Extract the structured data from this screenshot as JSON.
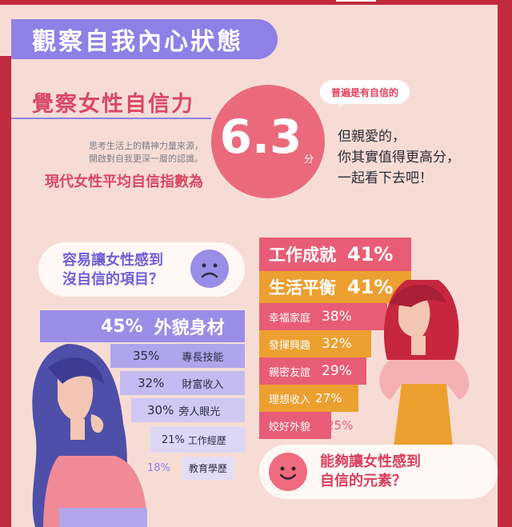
{
  "header": {
    "title": "觀察自我內心狀態"
  },
  "intro": {
    "subtitle": "覺察女性自信力",
    "desc_line1": "思考生活上的精神力量來源，",
    "desc_line2": "開啟對自我更深一層的認識。",
    "index_label": "現代女性平均自信指數為"
  },
  "score": {
    "value": "6.3",
    "unit": "分",
    "bubble": "普遍是有自信的",
    "line1": "但親愛的，",
    "line2": "你其實值得更高分，",
    "line3": "一起看下去吧！"
  },
  "question_low": {
    "line1": "容易讓女性感到",
    "line2": "沒自信的項目？"
  },
  "question_high": {
    "line1": "能夠讓女性感到",
    "line2": "自信的元素？"
  },
  "low_items": [
    {
      "pct": "45%",
      "label": "外貌身材"
    },
    {
      "pct": "35%",
      "label": "專長技能"
    },
    {
      "pct": "32%",
      "label": "財富收入"
    },
    {
      "pct": "30%",
      "label": "旁人眼光"
    },
    {
      "pct": "21%",
      "label": "工作經歷"
    },
    {
      "pct": "18%",
      "label": "教育學歷"
    }
  ],
  "high_items": [
    {
      "label": "工作成就",
      "pct": "41%"
    },
    {
      "label": "生活平衡",
      "pct": "41%"
    },
    {
      "label": "幸福家庭",
      "pct": "38%"
    },
    {
      "label": "發揮興趣",
      "pct": "32%"
    },
    {
      "label": "親密友誼",
      "pct": "29%"
    },
    {
      "label": "理想收入",
      "pct": "27%"
    },
    {
      "label": "姣好外貌",
      "pct": "25%"
    }
  ],
  "colors": {
    "accent_purple": "#8e80e6",
    "accent_red": "#d94866",
    "frame": "#c22a3f",
    "background": "#f7dcd5"
  }
}
